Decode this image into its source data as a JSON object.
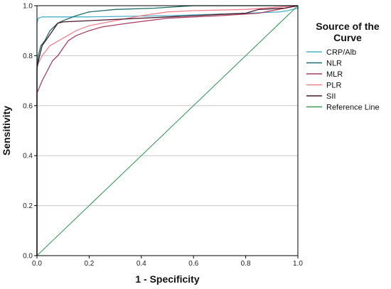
{
  "chart_data": {
    "type": "line",
    "xlabel": "1 - Specificity",
    "ylabel": "Sensitivity",
    "xlim": [
      0,
      1
    ],
    "ylim": [
      0,
      1
    ],
    "x_ticks": [
      0.0,
      0.2,
      0.4,
      0.6,
      0.8,
      1.0
    ],
    "y_ticks": [
      0.0,
      0.2,
      0.4,
      0.6,
      0.8,
      1.0
    ],
    "x_tick_labels": [
      "0.0",
      "0.2",
      "0.4",
      "0.6",
      "0.8",
      "1.0"
    ],
    "y_tick_labels": [
      "0.0",
      "0.2",
      "0.4",
      "0.6",
      "0.8",
      "1.0"
    ],
    "grid": "horizontal",
    "legend_title": "Source of the Curve",
    "legend_position": "right",
    "series": [
      {
        "name": "CRP/Alb",
        "color": "#4ab0c6",
        "points": [
          [
            0,
            0
          ],
          [
            0,
            0.93
          ],
          [
            0.005,
            0.95
          ],
          [
            0.02,
            0.955
          ],
          [
            0.2,
            0.955
          ],
          [
            0.5,
            0.96
          ],
          [
            0.8,
            0.97
          ],
          [
            0.93,
            0.975
          ],
          [
            0.96,
            0.98
          ],
          [
            1,
            0.99
          ],
          [
            1,
            1
          ]
        ]
      },
      {
        "name": "NLR",
        "color": "#1e7068",
        "points": [
          [
            0,
            0
          ],
          [
            0,
            0.74
          ],
          [
            0.005,
            0.8
          ],
          [
            0.015,
            0.84
          ],
          [
            0.03,
            0.86
          ],
          [
            0.05,
            0.9
          ],
          [
            0.08,
            0.93
          ],
          [
            0.1,
            0.94
          ],
          [
            0.15,
            0.96
          ],
          [
            0.2,
            0.975
          ],
          [
            0.3,
            0.985
          ],
          [
            0.45,
            0.99
          ],
          [
            0.6,
            1
          ],
          [
            1,
            1
          ]
        ]
      },
      {
        "name": "MLR",
        "color": "#a83d5e",
        "points": [
          [
            0,
            0
          ],
          [
            0,
            0.65
          ],
          [
            0.02,
            0.7
          ],
          [
            0.04,
            0.74
          ],
          [
            0.06,
            0.78
          ],
          [
            0.08,
            0.8
          ],
          [
            0.1,
            0.83
          ],
          [
            0.12,
            0.86
          ],
          [
            0.15,
            0.88
          ],
          [
            0.2,
            0.9
          ],
          [
            0.25,
            0.915
          ],
          [
            0.35,
            0.93
          ],
          [
            0.5,
            0.95
          ],
          [
            0.7,
            0.96
          ],
          [
            0.85,
            0.97
          ],
          [
            0.95,
            0.99
          ],
          [
            1,
            1
          ]
        ]
      },
      {
        "name": "PLR",
        "color": "#f08090",
        "points": [
          [
            0,
            0
          ],
          [
            0,
            0.76
          ],
          [
            0.02,
            0.8
          ],
          [
            0.05,
            0.84
          ],
          [
            0.1,
            0.87
          ],
          [
            0.15,
            0.9
          ],
          [
            0.2,
            0.92
          ],
          [
            0.3,
            0.94
          ],
          [
            0.4,
            0.96
          ],
          [
            0.5,
            0.975
          ],
          [
            0.6,
            0.98
          ],
          [
            0.8,
            0.985
          ],
          [
            1,
            1
          ]
        ]
      },
      {
        "name": "SII",
        "color": "#4a1628",
        "points": [
          [
            0,
            0
          ],
          [
            0,
            0.75
          ],
          [
            0.01,
            0.8
          ],
          [
            0.02,
            0.84
          ],
          [
            0.04,
            0.87
          ],
          [
            0.06,
            0.9
          ],
          [
            0.08,
            0.93
          ],
          [
            0.1,
            0.935
          ],
          [
            0.2,
            0.94
          ],
          [
            0.3,
            0.945
          ],
          [
            0.4,
            0.95
          ],
          [
            0.6,
            0.96
          ],
          [
            0.7,
            0.965
          ],
          [
            0.8,
            0.97
          ],
          [
            0.85,
            0.985
          ],
          [
            0.95,
            0.99
          ],
          [
            1,
            1
          ]
        ]
      },
      {
        "name": "Reference Line",
        "color": "#3c9a5a",
        "points": [
          [
            0,
            0
          ],
          [
            1,
            1
          ]
        ]
      }
    ]
  }
}
